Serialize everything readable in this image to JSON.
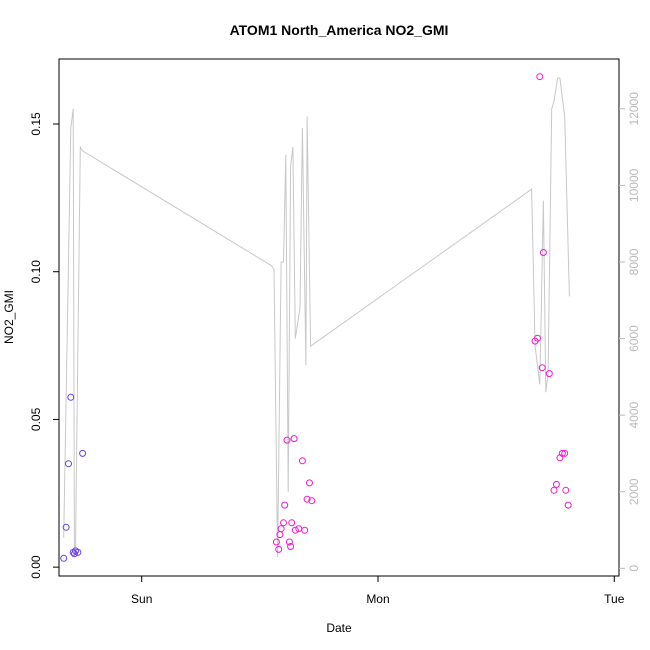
{
  "chart_data": {
    "type": "scatter",
    "title": "ATOM1 North_America NO2_GMI",
    "xlabel": "Date",
    "ylabel": "NO2_GMI",
    "x_ticks": [
      "Sun",
      "Mon",
      "Tue"
    ],
    "xlim_days": [
      -0.35,
      2.02
    ],
    "x_tick_days": [
      0,
      1,
      2
    ],
    "ylim": [
      -0.003,
      0.172
    ],
    "y_ticks": [
      0.0,
      0.05,
      0.1,
      0.15
    ],
    "y_tick_labels": [
      "0.00",
      "0.05",
      "0.10",
      "0.15"
    ],
    "y2lim": [
      -200,
      13300
    ],
    "y2_ticks": [
      0,
      2000,
      4000,
      6000,
      8000,
      10000,
      12000
    ],
    "y2_tick_labels": [
      "0",
      "2000",
      "4000",
      "6000",
      "8000",
      "10000",
      "12000"
    ],
    "colors": {
      "axis": "#000000",
      "line": "#c8c8c8",
      "right_axis": "#bbbbbb",
      "point_low": "#6a3df0",
      "point_high": "#f01ad0"
    },
    "points": [
      {
        "x": -0.33,
        "y": 0.003
      },
      {
        "x": -0.32,
        "y": 0.0135
      },
      {
        "x": -0.31,
        "y": 0.035
      },
      {
        "x": -0.3,
        "y": 0.0575
      },
      {
        "x": -0.29,
        "y": 0.005
      },
      {
        "x": -0.285,
        "y": 0.0045
      },
      {
        "x": -0.28,
        "y": 0.0055
      },
      {
        "x": -0.27,
        "y": 0.005
      },
      {
        "x": -0.25,
        "y": 0.0385
      },
      {
        "x": 0.57,
        "y": 0.0085
      },
      {
        "x": 0.58,
        "y": 0.006
      },
      {
        "x": 0.585,
        "y": 0.011
      },
      {
        "x": 0.59,
        "y": 0.013
      },
      {
        "x": 0.6,
        "y": 0.015
      },
      {
        "x": 0.605,
        "y": 0.021
      },
      {
        "x": 0.615,
        "y": 0.043
      },
      {
        "x": 0.625,
        "y": 0.0085
      },
      {
        "x": 0.63,
        "y": 0.007
      },
      {
        "x": 0.635,
        "y": 0.015
      },
      {
        "x": 0.645,
        "y": 0.0435
      },
      {
        "x": 0.65,
        "y": 0.0125
      },
      {
        "x": 0.665,
        "y": 0.013
      },
      {
        "x": 0.68,
        "y": 0.036
      },
      {
        "x": 0.69,
        "y": 0.0125
      },
      {
        "x": 0.7,
        "y": 0.023
      },
      {
        "x": 0.71,
        "y": 0.0285
      },
      {
        "x": 0.72,
        "y": 0.0225
      },
      {
        "x": 1.665,
        "y": 0.0765
      },
      {
        "x": 1.675,
        "y": 0.0775
      },
      {
        "x": 1.685,
        "y": 0.166
      },
      {
        "x": 1.695,
        "y": 0.0675
      },
      {
        "x": 1.7,
        "y": 0.1065
      },
      {
        "x": 1.725,
        "y": 0.0655
      },
      {
        "x": 1.745,
        "y": 0.026
      },
      {
        "x": 1.755,
        "y": 0.028
      },
      {
        "x": 1.77,
        "y": 0.037
      },
      {
        "x": 1.78,
        "y": 0.0385
      },
      {
        "x": 1.79,
        "y": 0.0385
      },
      {
        "x": 1.795,
        "y": 0.026
      },
      {
        "x": 1.805,
        "y": 0.021
      }
    ],
    "altitude_series": [
      [
        -0.33,
        800
      ],
      [
        -0.3,
        11500
      ],
      [
        -0.29,
        12000
      ],
      [
        -0.285,
        500
      ],
      [
        -0.28,
        500
      ],
      [
        -0.26,
        11000
      ],
      [
        -0.25,
        10900
      ],
      [
        0.55,
        7900
      ],
      [
        0.56,
        7800
      ],
      [
        0.575,
        300
      ],
      [
        0.59,
        8000
      ],
      [
        0.6,
        8000
      ],
      [
        0.61,
        10800
      ],
      [
        0.62,
        2000
      ],
      [
        0.63,
        10500
      ],
      [
        0.64,
        11000
      ],
      [
        0.65,
        6000
      ],
      [
        0.67,
        6800
      ],
      [
        0.68,
        11500
      ],
      [
        0.695,
        5300
      ],
      [
        0.7,
        11800
      ],
      [
        0.715,
        5800
      ],
      [
        1.65,
        9900
      ],
      [
        1.665,
        5800
      ],
      [
        1.685,
        4800
      ],
      [
        1.7,
        9600
      ],
      [
        1.71,
        4600
      ],
      [
        1.72,
        5100
      ],
      [
        1.735,
        12000
      ],
      [
        1.745,
        12200
      ],
      [
        1.76,
        12800
      ],
      [
        1.77,
        12800
      ],
      [
        1.79,
        11800
      ],
      [
        1.81,
        7100
      ]
    ]
  }
}
